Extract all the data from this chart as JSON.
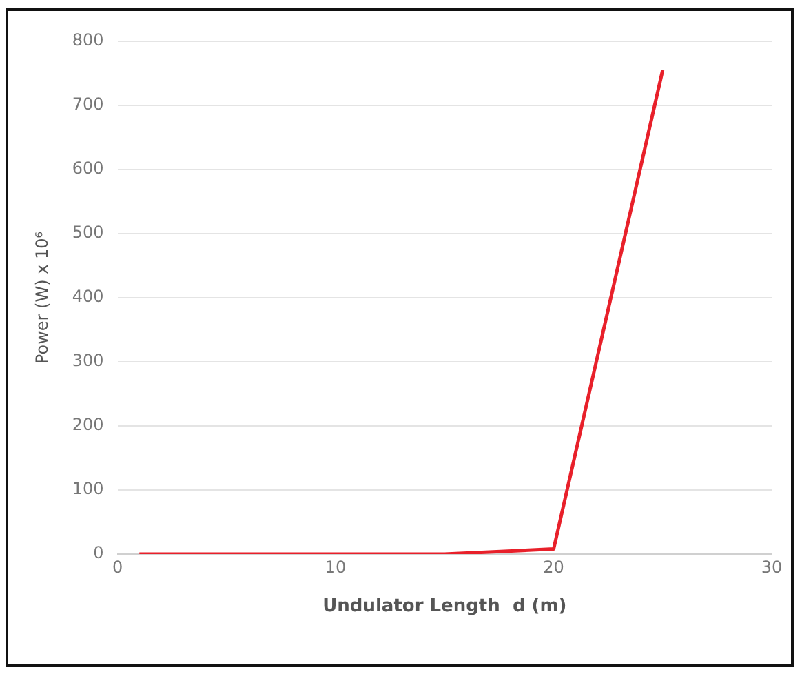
{
  "chart_data": {
    "type": "line",
    "xlabel": "Undulator Length  d (m)",
    "ylabel": "Power (W) x 10⁶",
    "x": [
      1,
      15,
      20,
      25
    ],
    "series": [
      {
        "color": "#e8202a",
        "values": [
          0,
          0,
          8,
          755
        ]
      }
    ],
    "xlim": [
      0,
      30
    ],
    "xticks": [
      0,
      10,
      20,
      30
    ],
    "ylim": [
      0,
      800
    ],
    "yticks": [
      0,
      100,
      200,
      300,
      400,
      500,
      600,
      700,
      800
    ],
    "grid": "y",
    "legend": false,
    "marker": "none",
    "line_style": "solid"
  }
}
